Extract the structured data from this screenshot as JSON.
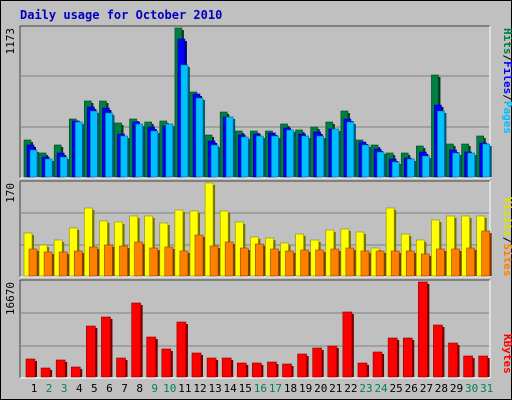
{
  "chart_data": {
    "type": "bar",
    "title": "Daily usage for October 2010",
    "x": [
      1,
      2,
      3,
      4,
      5,
      6,
      7,
      8,
      9,
      10,
      11,
      12,
      13,
      14,
      15,
      16,
      17,
      18,
      19,
      20,
      21,
      22,
      23,
      24,
      25,
      26,
      27,
      28,
      29,
      30,
      31
    ],
    "weekend_days": [
      2,
      3,
      9,
      10,
      16,
      17,
      23,
      24,
      30,
      31
    ],
    "panels": [
      {
        "max_label": "1173",
        "ymax": 1173,
        "right_label": [
          {
            "text": "Hits",
            "color": "#008040"
          },
          {
            "text": "/",
            "color": "#000000"
          },
          {
            "text": "Files",
            "color": "#0000ff"
          },
          {
            "text": "/",
            "color": "#000000"
          },
          {
            "text": "Pages",
            "color": "#00c0ff"
          }
        ],
        "series": [
          {
            "name": "Hits",
            "color": "#008040",
            "values": [
              290,
              190,
              250,
              455,
              600,
              600,
              425,
              455,
              435,
              440,
              1173,
              670,
              330,
              510,
              360,
              365,
              365,
              420,
              370,
              390,
              430,
              520,
              290,
              250,
              190,
              190,
              245,
              805,
              260,
              260,
              320
            ]
          },
          {
            "name": "Files",
            "color": "#0000ff",
            "values": [
              250,
              155,
              190,
              440,
              550,
              545,
              340,
              430,
              395,
              405,
              1090,
              650,
              285,
              470,
              330,
              335,
              345,
              385,
              335,
              355,
              380,
              455,
              275,
              220,
              140,
              150,
              200,
              570,
              215,
              200,
              270
            ]
          },
          {
            "name": "Pages",
            "color": "#00c0ff",
            "values": [
              210,
              140,
              160,
              430,
              520,
              500,
              320,
              420,
              360,
              420,
              880,
              620,
              250,
              470,
              315,
              320,
              320,
              370,
              320,
              320,
              375,
              435,
              255,
              195,
              120,
              140,
              165,
              520,
              190,
              190,
              260
            ]
          }
        ]
      },
      {
        "max_label": "170",
        "ymax": 170,
        "right_label": [
          {
            "text": "Visits",
            "color": "#e0e000"
          },
          {
            "text": "/",
            "color": "#000000"
          },
          {
            "text": "Sites",
            "color": "#ff8000"
          }
        ],
        "series": [
          {
            "name": "Visits",
            "color": "#ffff00",
            "values": [
              78,
              56,
              66,
              88,
              125,
              100,
              98,
              110,
              110,
              96,
              120,
              118,
              170,
              118,
              98,
              72,
              70,
              60,
              76,
              65,
              84,
              85,
              80,
              52,
              124,
              76,
              65,
              103,
              110,
              110,
              110
            ]
          },
          {
            "name": "Sites",
            "color": "#ff8000",
            "values": [
              49,
              43,
              43,
              46,
              53,
              57,
              54,
              62,
              52,
              53,
              46,
              75,
              54,
              63,
              52,
              58,
              49,
              46,
              48,
              48,
              49,
              52,
              45,
              45,
              46,
              45,
              40,
              50,
              50,
              52,
              83
            ]
          }
        ]
      },
      {
        "max_label": "16670",
        "ymax": 16670,
        "right_label": [
          {
            "text": "KBytes",
            "color": "#ff0000"
          }
        ],
        "series": [
          {
            "name": "KBytes",
            "color": "#ff0000",
            "values": [
              3100,
              1600,
              3000,
              1800,
              8900,
              10600,
              3300,
              12900,
              7000,
              5000,
              9600,
              4200,
              3300,
              3300,
              2500,
              2500,
              2700,
              2300,
              4000,
              5100,
              5400,
              11400,
              2500,
              4300,
              6900,
              6800,
              16670,
              9100,
              6000,
              3600,
              3600
            ]
          }
        ]
      }
    ]
  }
}
